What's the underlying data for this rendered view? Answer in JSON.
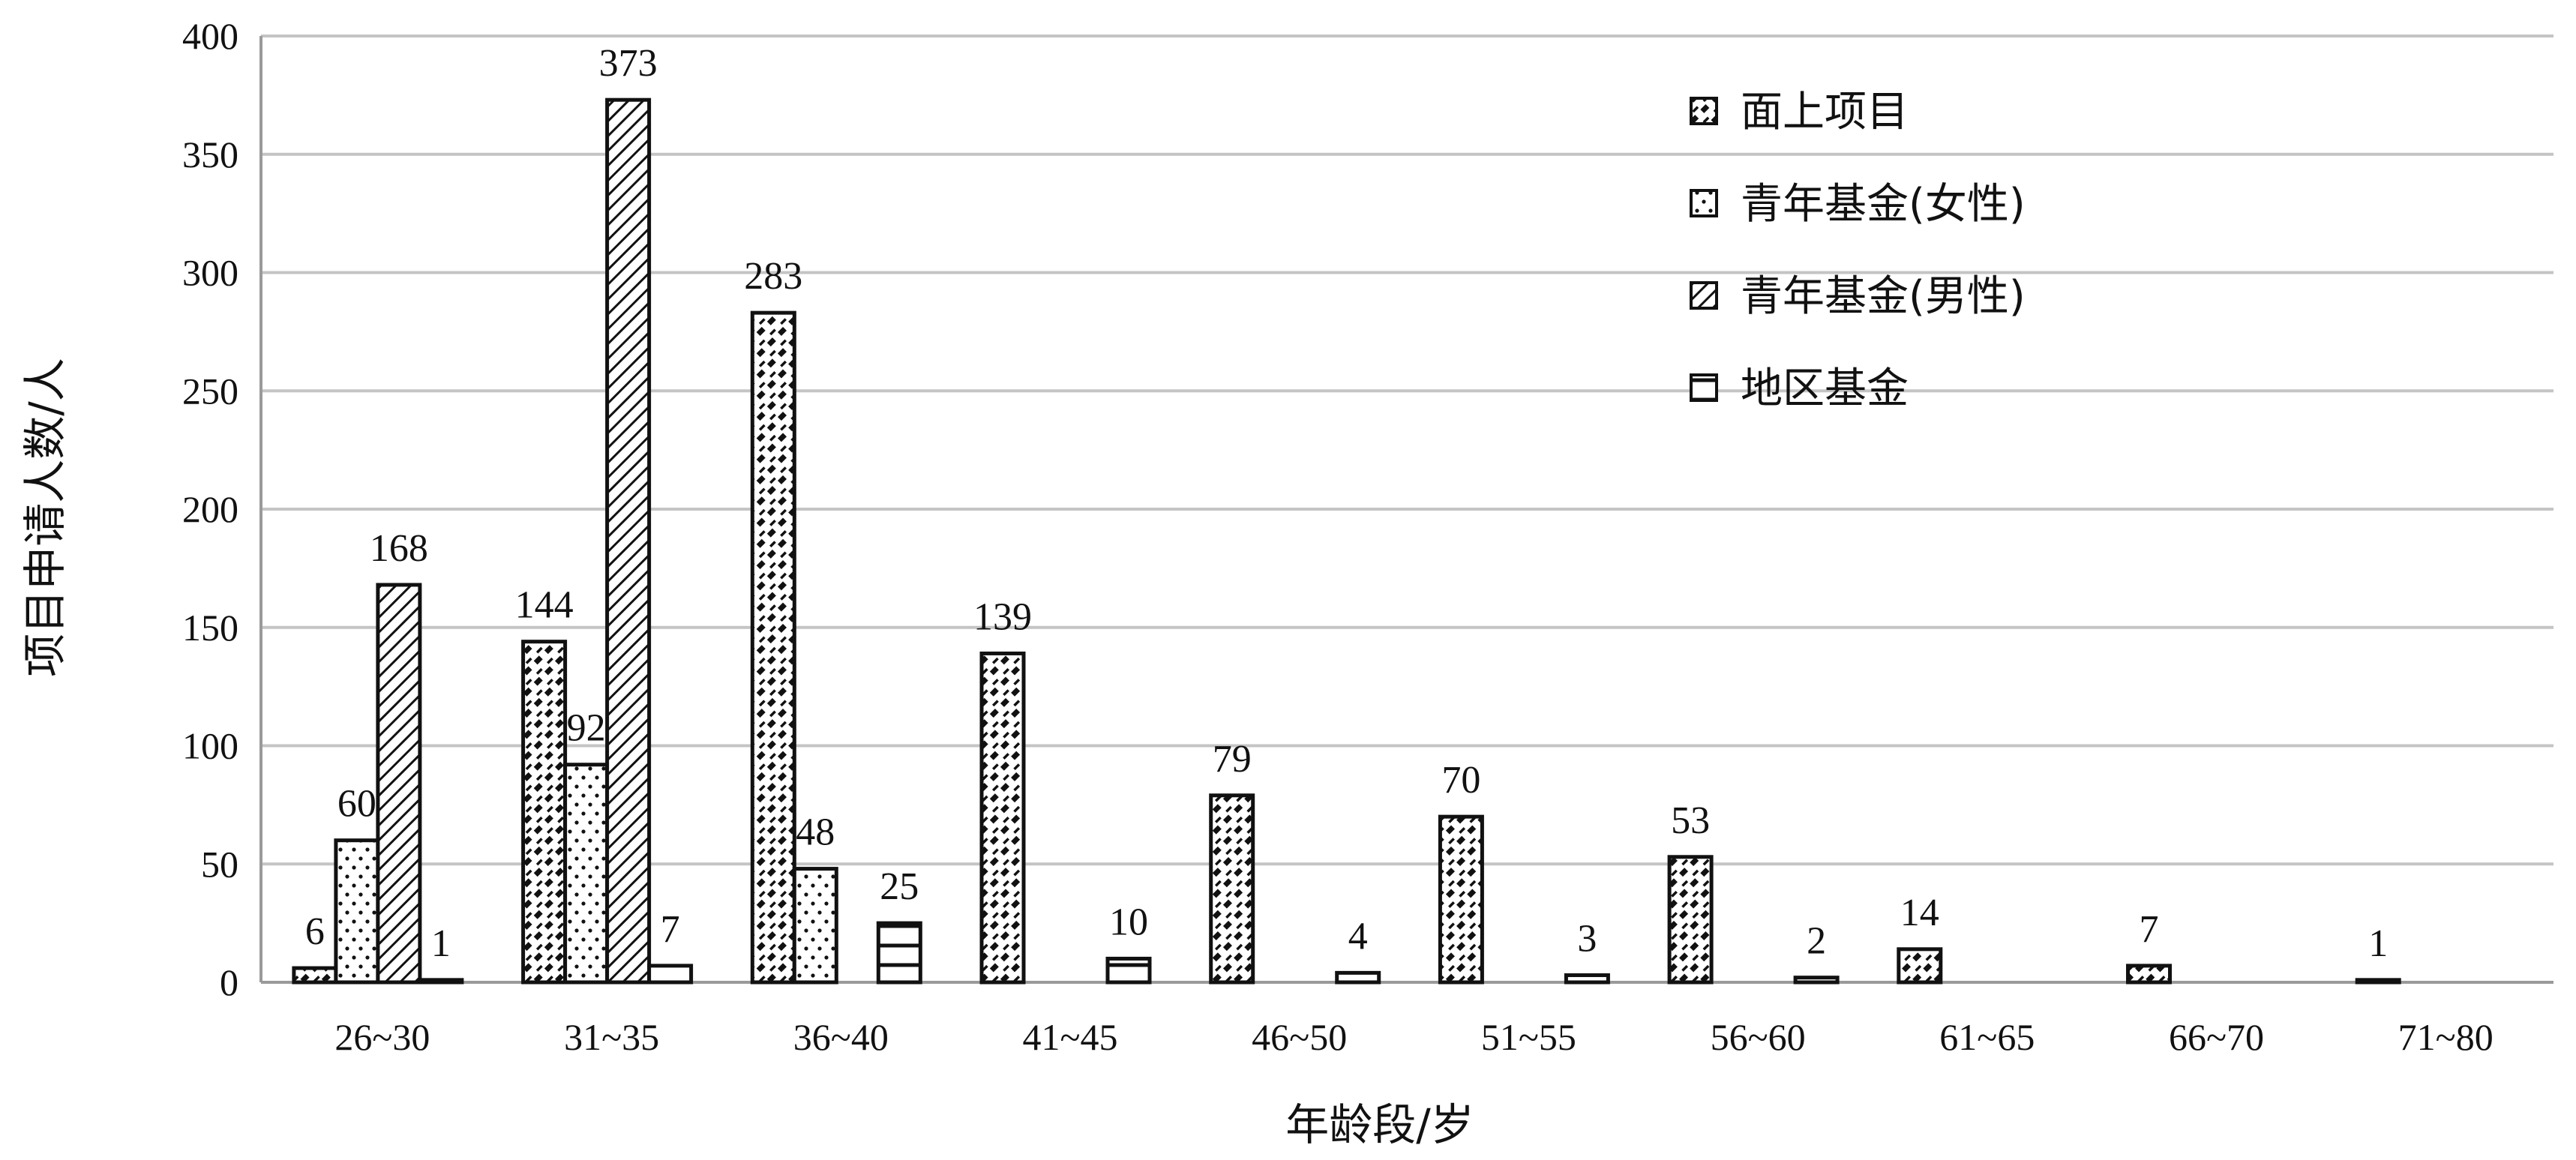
{
  "chart_data": {
    "type": "bar",
    "xlabel": "年龄段/岁",
    "ylabel": "项目申请人数/人",
    "ylim": [
      0,
      400
    ],
    "yticks": [
      0,
      50,
      100,
      150,
      200,
      250,
      300,
      350,
      400
    ],
    "grid": true,
    "legend_position": "top-right",
    "categories": [
      "26~30",
      "31~35",
      "36~40",
      "41~45",
      "46~50",
      "51~55",
      "56~60",
      "61~65",
      "66~70",
      "71~80"
    ],
    "series": [
      {
        "name": "面上项目",
        "pattern": "dashed-diagonal",
        "values": [
          6,
          144,
          283,
          139,
          79,
          70,
          53,
          14,
          7,
          1
        ]
      },
      {
        "name": "青年基金(女性)",
        "pattern": "dots",
        "values": [
          60,
          92,
          48,
          null,
          null,
          null,
          null,
          null,
          null,
          null
        ]
      },
      {
        "name": "青年基金(男性)",
        "pattern": "dense-diagonal",
        "values": [
          168,
          373,
          null,
          null,
          null,
          null,
          null,
          null,
          null,
          null
        ]
      },
      {
        "name": "地区基金",
        "pattern": "horizontal-lines",
        "values": [
          1,
          7,
          25,
          10,
          4,
          3,
          2,
          null,
          null,
          null
        ]
      }
    ]
  }
}
